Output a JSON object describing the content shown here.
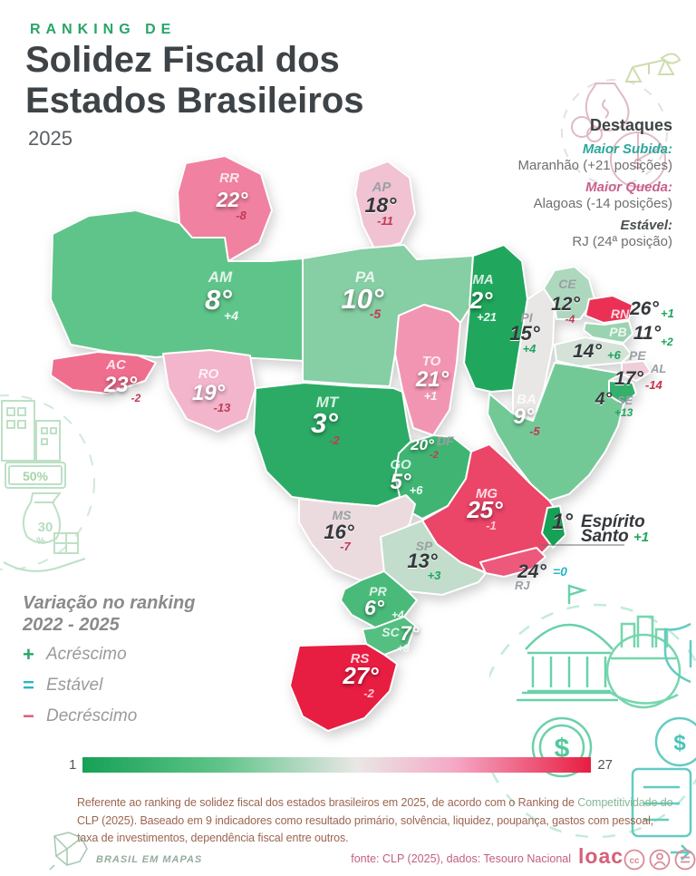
{
  "header": {
    "kicker": "RANKING DE",
    "title_line1": "Solidez Fiscal dos",
    "title_line2": "Estados Brasileiros",
    "year": "2025"
  },
  "destaques": {
    "title": "Destaques",
    "maior_subida_label": "Maior Subida:",
    "maior_subida_value": "Maranhão (+21 posições)",
    "maior_subida_color": "#2aa79b",
    "maior_queda_label": "Maior Queda:",
    "maior_queda_value": "Alagoas (-14 posições)",
    "maior_queda_color": "#c9608c",
    "estavel_label": "Estável:",
    "estavel_value": "RJ (24ª posição)"
  },
  "legend": {
    "title_line1": "Variação no ranking",
    "title_line2": "2022 - 2025",
    "items": [
      {
        "symbol": "+",
        "label": "Acréscimo",
        "color": "#27a763"
      },
      {
        "symbol": "=",
        "label": "Estável",
        "color": "#2ab6c5"
      },
      {
        "symbol": "−",
        "label": "Decréscimo",
        "color": "#e05575"
      }
    ]
  },
  "scale_bar": {
    "min": "1",
    "max": "27"
  },
  "footer": {
    "note_part1": "Referente ao ranking de solidez fiscal dos estados brasileiros em 2025, de acordo com o Ranking de ",
    "note_highlight": "Competitividade do",
    "note_line2": "CLP (2025). Baseado em 9 indicadores como resultado primário, solvência, liquidez, poupança, gastos com pessoal,",
    "note_line3": "taxa de investimentos, dependência fiscal entre outros.",
    "brand": "BRASIL EM MAPAS",
    "source": "fonte: CLP (2025), dados: Tesouro Nacional",
    "logo": "loac",
    "cc_label": "cc"
  },
  "decor": {
    "pct_50": "50%",
    "pct_30": "30",
    "pct_sign": "%",
    "dollar": "$"
  },
  "chart_data": {
    "type": "choropleth-map",
    "title": "Ranking de Solidez Fiscal dos Estados Brasileiros — 2025",
    "scale": {
      "min": 1,
      "max": 27,
      "stops": [
        [
          1,
          "#16a156"
        ],
        [
          8,
          "#5fc489"
        ],
        [
          15,
          "#e9e7e5"
        ],
        [
          20,
          "#f4a9c6"
        ],
        [
          27,
          "#e81d42"
        ]
      ]
    },
    "states": [
      {
        "abbr": "RR",
        "rank": 22,
        "rank_label": "22°",
        "change_label": "-8"
      },
      {
        "abbr": "AP",
        "rank": 18,
        "rank_label": "18°",
        "change_label": "-11"
      },
      {
        "abbr": "AM",
        "rank": 8,
        "rank_label": "8°",
        "change_label": "+4"
      },
      {
        "abbr": "PA",
        "rank": 10,
        "rank_label": "10°",
        "change_label": "-5"
      },
      {
        "abbr": "MA",
        "rank": 2,
        "rank_label": "2°",
        "change_label": "+21"
      },
      {
        "abbr": "PI",
        "rank": 15,
        "rank_label": "15°",
        "change_label": "+4"
      },
      {
        "abbr": "CE",
        "rank": 12,
        "rank_label": "12°",
        "change_label": "-4"
      },
      {
        "abbr": "RN",
        "rank": 26,
        "rank_label": "26°",
        "change_label": "+1"
      },
      {
        "abbr": "PB",
        "rank": 11,
        "rank_label": "11°",
        "change_label": "+2"
      },
      {
        "abbr": "PE",
        "rank": 14,
        "rank_label": "14°",
        "change_label": "+6"
      },
      {
        "abbr": "AL",
        "rank": 17,
        "rank_label": "17°",
        "change_label": "-14"
      },
      {
        "abbr": "SE",
        "rank": 4,
        "rank_label": "4°",
        "change_label": "+13"
      },
      {
        "abbr": "BA",
        "rank": 9,
        "rank_label": "9°",
        "change_label": "-5"
      },
      {
        "abbr": "TO",
        "rank": 21,
        "rank_label": "21°",
        "change_label": "+1"
      },
      {
        "abbr": "AC",
        "rank": 23,
        "rank_label": "23°",
        "change_label": "-2"
      },
      {
        "abbr": "RO",
        "rank": 19,
        "rank_label": "19°",
        "change_label": "-13"
      },
      {
        "abbr": "MT",
        "rank": 3,
        "rank_label": "3°",
        "change_label": "-2"
      },
      {
        "abbr": "DF",
        "rank": 20,
        "rank_label": "20°",
        "change_label": "-2"
      },
      {
        "abbr": "GO",
        "rank": 5,
        "rank_label": "5°",
        "change_label": "+6"
      },
      {
        "abbr": "MG",
        "rank": 25,
        "rank_label": "25°",
        "change_label": "-1"
      },
      {
        "abbr": "ES",
        "name": "Espírito Santo",
        "rank": 1,
        "rank_label": "1°",
        "change_label": "+1"
      },
      {
        "abbr": "MS",
        "rank": 16,
        "rank_label": "16°",
        "change_label": "-7"
      },
      {
        "abbr": "SP",
        "rank": 13,
        "rank_label": "13°",
        "change_label": "+3"
      },
      {
        "abbr": "RJ",
        "rank": 24,
        "rank_label": "24°",
        "change_label": "=0"
      },
      {
        "abbr": "PR",
        "rank": 6,
        "rank_label": "6°",
        "change_label": "+4"
      },
      {
        "abbr": "SC",
        "rank": 7,
        "rank_label": "7°",
        "change_label": "+8"
      },
      {
        "abbr": "RS",
        "rank": 27,
        "rank_label": "27°",
        "change_label": "-2"
      }
    ]
  }
}
